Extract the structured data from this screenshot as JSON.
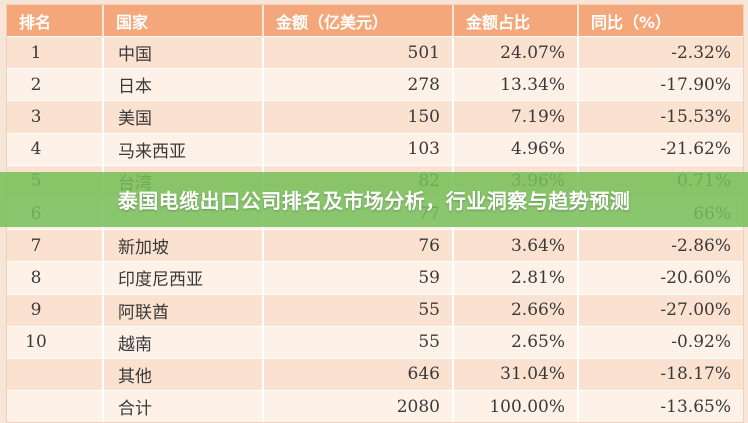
{
  "table": {
    "headers": [
      "排名",
      "国家",
      "金额（亿美元）",
      "金额占比",
      "同比（%）"
    ],
    "rows": [
      {
        "rank": "1",
        "country": "中国",
        "amount": "501",
        "share": "24.07%",
        "yoy": "-2.32%"
      },
      {
        "rank": "2",
        "country": "日本",
        "amount": "278",
        "share": "13.34%",
        "yoy": "-17.90%"
      },
      {
        "rank": "3",
        "country": "美国",
        "amount": "150",
        "share": "7.19%",
        "yoy": "-15.53%"
      },
      {
        "rank": "4",
        "country": "马来西亚",
        "amount": "103",
        "share": "4.96%",
        "yoy": "-21.62%"
      },
      {
        "rank": "5",
        "country": "台湾",
        "amount": "82",
        "share": "3.96%",
        "yoy": "0.71%"
      },
      {
        "rank": "6",
        "country": "",
        "amount": "77",
        "share": "",
        "yoy": "66%"
      },
      {
        "rank": "7",
        "country": "新加坡",
        "amount": "76",
        "share": "3.64%",
        "yoy": "-2.86%"
      },
      {
        "rank": "8",
        "country": "印度尼西亚",
        "amount": "59",
        "share": "2.81%",
        "yoy": "-20.60%"
      },
      {
        "rank": "9",
        "country": "阿联酋",
        "amount": "55",
        "share": "2.66%",
        "yoy": "-27.00%"
      },
      {
        "rank": "10",
        "country": "越南",
        "amount": "55",
        "share": "2.65%",
        "yoy": "-0.92%"
      },
      {
        "rank": "",
        "country": "其他",
        "amount": "646",
        "share": "31.04%",
        "yoy": "-18.17%"
      },
      {
        "rank": "",
        "country": "合计",
        "amount": "2080",
        "share": "100.00%",
        "yoy": "-13.65%"
      }
    ]
  },
  "banner": {
    "title": "泰国电缆出口公司排名及市场分析，行业洞察与趋势预测"
  },
  "colors": {
    "header_bg": "#f4a77a",
    "row_odd": "#fbe1cf",
    "row_even": "#fdf1e8",
    "banner_bg": "#76bf58"
  }
}
